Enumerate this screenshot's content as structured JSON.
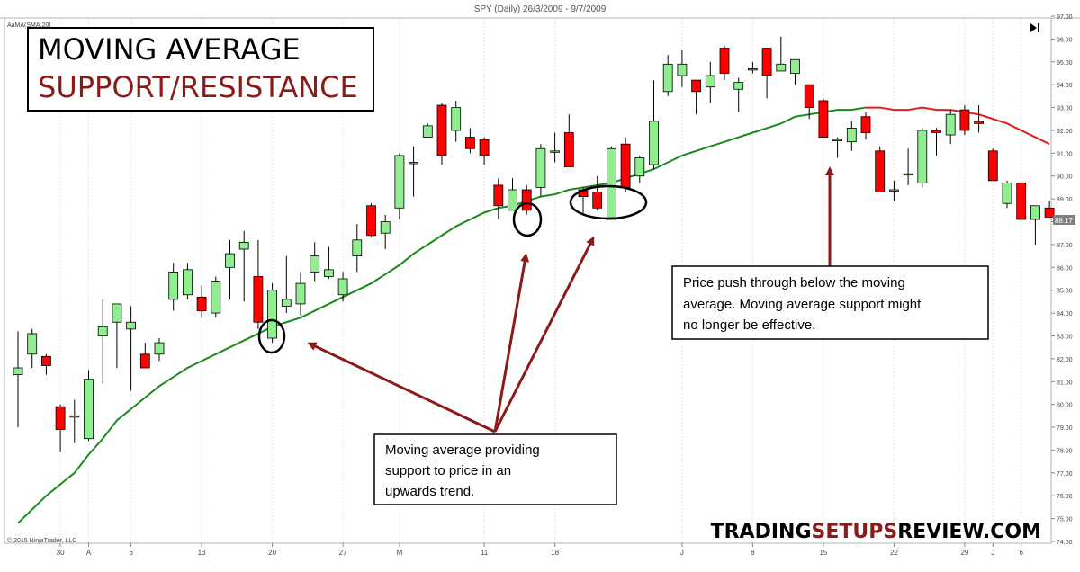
{
  "header": {
    "title": "SPY (Daily)  26/3/2009 - 9/7/2009"
  },
  "indicator_label": "AaMA(SMA,20)",
  "copyright": "© 2015 NinjaTrader, LLC",
  "brand": {
    "part1": "TRADING",
    "part2": "SETUPS",
    "part3": "REVIEW.COM"
  },
  "title_box": {
    "line1": "MOVING AVERAGE",
    "line2": "SUPPORT/RESISTANCE"
  },
  "notes": {
    "support": [
      "Moving average providing",
      "support to price in an",
      "upwards trend."
    ],
    "break": [
      "Price push through below the moving",
      "average. Moving average support might",
      "no longer be effective."
    ]
  },
  "price_tag": "88.17",
  "nav_icon": "skip-to-end-icon",
  "colors": {
    "up": "#90ee90",
    "down": "#ff0000",
    "ma_support": "#1a8a1a",
    "ma_resistance": "#e02020",
    "arrow": "#8b1a1a",
    "title_red": "#8b1a1a"
  },
  "chart_data": {
    "type": "candlestick",
    "ylim": [
      74,
      97
    ],
    "yticks": [
      74,
      75,
      76,
      77,
      78,
      79,
      80,
      81,
      82,
      83,
      84,
      85,
      86,
      87,
      88,
      89,
      90,
      91,
      92,
      93,
      94,
      95,
      96,
      97
    ],
    "xticks": [
      "30",
      "A",
      "6",
      "13",
      "20",
      "27",
      "M",
      "11",
      "18",
      "J",
      "8",
      "15",
      "22",
      "29",
      "J",
      "6"
    ],
    "xtick_index": [
      3,
      5,
      8,
      13,
      18,
      23,
      27,
      33,
      38,
      47,
      52,
      57,
      62,
      67,
      69,
      71
    ],
    "candles": [
      {
        "o": 81.3,
        "h": 83.2,
        "l": 79.0,
        "c": 81.6
      },
      {
        "o": 82.2,
        "h": 83.3,
        "l": 81.6,
        "c": 83.1
      },
      {
        "o": 82.1,
        "h": 82.2,
        "l": 81.3,
        "c": 81.7
      },
      {
        "o": 79.9,
        "h": 80.0,
        "l": 77.9,
        "c": 78.9
      },
      {
        "o": 79.5,
        "h": 80.2,
        "l": 78.3,
        "c": 79.5
      },
      {
        "o": 78.5,
        "h": 81.5,
        "l": 78.4,
        "c": 81.1
      },
      {
        "o": 83.0,
        "h": 84.6,
        "l": 80.9,
        "c": 83.4
      },
      {
        "o": 83.6,
        "h": 84.4,
        "l": 81.6,
        "c": 84.4
      },
      {
        "o": 83.3,
        "h": 84.3,
        "l": 80.6,
        "c": 83.6
      },
      {
        "o": 82.2,
        "h": 82.7,
        "l": 81.6,
        "c": 81.6
      },
      {
        "o": 82.2,
        "h": 82.9,
        "l": 81.9,
        "c": 82.7
      },
      {
        "o": 84.6,
        "h": 86.2,
        "l": 84.1,
        "c": 85.8
      },
      {
        "o": 84.8,
        "h": 86.2,
        "l": 84.6,
        "c": 85.9
      },
      {
        "o": 84.7,
        "h": 85.2,
        "l": 83.8,
        "c": 84.1
      },
      {
        "o": 84.0,
        "h": 85.6,
        "l": 83.8,
        "c": 85.4
      },
      {
        "o": 86.0,
        "h": 87.2,
        "l": 84.6,
        "c": 86.6
      },
      {
        "o": 86.8,
        "h": 87.6,
        "l": 84.5,
        "c": 87.1
      },
      {
        "o": 85.6,
        "h": 87.2,
        "l": 83.3,
        "c": 83.6
      },
      {
        "o": 82.9,
        "h": 85.3,
        "l": 82.7,
        "c": 85.0
      },
      {
        "o": 84.3,
        "h": 86.5,
        "l": 84.0,
        "c": 84.6
      },
      {
        "o": 84.4,
        "h": 85.8,
        "l": 83.9,
        "c": 85.3
      },
      {
        "o": 85.8,
        "h": 87.1,
        "l": 85.4,
        "c": 86.5
      },
      {
        "o": 85.6,
        "h": 86.9,
        "l": 85.5,
        "c": 85.9
      },
      {
        "o": 84.8,
        "h": 85.8,
        "l": 84.5,
        "c": 85.5
      },
      {
        "o": 86.5,
        "h": 87.9,
        "l": 85.8,
        "c": 87.2
      },
      {
        "o": 88.7,
        "h": 88.8,
        "l": 87.3,
        "c": 87.4
      },
      {
        "o": 87.5,
        "h": 88.3,
        "l": 86.8,
        "c": 88.0
      },
      {
        "o": 88.6,
        "h": 91.0,
        "l": 88.1,
        "c": 90.9
      },
      {
        "o": 90.6,
        "h": 91.3,
        "l": 89.1,
        "c": 90.6
      },
      {
        "o": 91.7,
        "h": 92.3,
        "l": 91.7,
        "c": 92.2
      },
      {
        "o": 93.1,
        "h": 93.2,
        "l": 90.5,
        "c": 90.9
      },
      {
        "o": 92.0,
        "h": 93.3,
        "l": 91.5,
        "c": 93.0
      },
      {
        "o": 91.7,
        "h": 92.1,
        "l": 91.0,
        "c": 91.2
      },
      {
        "o": 91.6,
        "h": 91.7,
        "l": 90.5,
        "c": 90.9
      },
      {
        "o": 89.6,
        "h": 89.9,
        "l": 88.1,
        "c": 88.7
      },
      {
        "o": 88.5,
        "h": 89.9,
        "l": 88.5,
        "c": 89.4
      },
      {
        "o": 89.4,
        "h": 89.6,
        "l": 88.3,
        "c": 88.5
      },
      {
        "o": 89.5,
        "h": 91.4,
        "l": 89.1,
        "c": 91.2
      },
      {
        "o": 91.1,
        "h": 91.9,
        "l": 90.6,
        "c": 91.1
      },
      {
        "o": 91.9,
        "h": 92.7,
        "l": 90.4,
        "c": 90.4
      },
      {
        "o": 89.4,
        "h": 89.5,
        "l": 88.3,
        "c": 89.1
      },
      {
        "o": 89.3,
        "h": 90.0,
        "l": 88.5,
        "c": 88.6
      },
      {
        "o": 88.1,
        "h": 91.3,
        "l": 88.1,
        "c": 91.2
      },
      {
        "o": 91.4,
        "h": 91.7,
        "l": 89.3,
        "c": 89.5
      },
      {
        "o": 90.0,
        "h": 90.9,
        "l": 89.7,
        "c": 90.8
      },
      {
        "o": 90.5,
        "h": 94.2,
        "l": 90.3,
        "c": 92.4
      },
      {
        "o": 93.7,
        "h": 95.3,
        "l": 93.5,
        "c": 94.9
      },
      {
        "o": 94.4,
        "h": 95.5,
        "l": 93.9,
        "c": 94.9
      },
      {
        "o": 94.2,
        "h": 94.2,
        "l": 92.7,
        "c": 93.7
      },
      {
        "o": 93.9,
        "h": 95.0,
        "l": 93.2,
        "c": 94.4
      },
      {
        "o": 95.6,
        "h": 95.7,
        "l": 94.2,
        "c": 94.5
      },
      {
        "o": 93.8,
        "h": 94.3,
        "l": 92.8,
        "c": 94.1
      },
      {
        "o": 94.7,
        "h": 95.0,
        "l": 94.5,
        "c": 94.7
      },
      {
        "o": 95.6,
        "h": 95.6,
        "l": 93.4,
        "c": 94.4
      },
      {
        "o": 94.6,
        "h": 96.1,
        "l": 94.6,
        "c": 94.9
      },
      {
        "o": 94.5,
        "h": 95.1,
        "l": 94.0,
        "c": 95.1
      },
      {
        "o": 94.0,
        "h": 94.0,
        "l": 92.5,
        "c": 93.0
      },
      {
        "o": 93.3,
        "h": 93.4,
        "l": 91.7,
        "c": 91.7
      },
      {
        "o": 91.6,
        "h": 91.7,
        "l": 90.8,
        "c": 91.6
      },
      {
        "o": 91.5,
        "h": 92.4,
        "l": 91.1,
        "c": 92.1
      },
      {
        "o": 92.6,
        "h": 92.8,
        "l": 91.6,
        "c": 91.9
      },
      {
        "o": 91.1,
        "h": 91.3,
        "l": 89.3,
        "c": 89.3
      },
      {
        "o": 89.4,
        "h": 89.8,
        "l": 88.9,
        "c": 89.4
      },
      {
        "o": 90.1,
        "h": 91.2,
        "l": 89.6,
        "c": 90.1
      },
      {
        "o": 89.7,
        "h": 92.1,
        "l": 89.5,
        "c": 92.0
      },
      {
        "o": 92.0,
        "h": 92.1,
        "l": 90.9,
        "c": 91.9
      },
      {
        "o": 91.8,
        "h": 92.9,
        "l": 91.4,
        "c": 92.7
      },
      {
        "o": 92.9,
        "h": 93.1,
        "l": 91.8,
        "c": 92.0
      },
      {
        "o": 92.4,
        "h": 93.1,
        "l": 91.9,
        "c": 92.3
      },
      {
        "o": 91.1,
        "h": 91.2,
        "l": 89.9,
        "c": 89.8
      },
      {
        "o": 88.8,
        "h": 89.8,
        "l": 88.6,
        "c": 89.7
      },
      {
        "o": 89.7,
        "h": 89.7,
        "l": 88.1,
        "c": 88.1
      },
      {
        "o": 88.1,
        "h": 88.7,
        "l": 87.0,
        "c": 88.7
      },
      {
        "o": 88.6,
        "h": 88.9,
        "l": 88.2,
        "c": 88.2
      }
    ],
    "sma20": [
      74.8,
      75.4,
      76.0,
      76.5,
      77.0,
      77.8,
      78.5,
      79.3,
      79.8,
      80.3,
      80.8,
      81.2,
      81.6,
      81.9,
      82.2,
      82.5,
      82.8,
      83.1,
      83.4,
      83.6,
      83.8,
      84.1,
      84.4,
      84.7,
      85.0,
      85.3,
      85.7,
      86.1,
      86.6,
      87.0,
      87.4,
      87.8,
      88.1,
      88.4,
      88.6,
      88.7,
      88.9,
      89.1,
      89.2,
      89.4,
      89.5,
      89.6,
      89.7,
      89.9,
      90.1,
      90.3,
      90.6,
      90.9,
      91.1,
      91.3,
      91.5,
      91.7,
      91.9,
      92.1,
      92.3,
      92.6,
      92.7,
      92.8,
      92.9,
      92.9,
      93.0,
      93.0,
      92.9,
      92.9,
      93.0,
      92.9,
      92.9,
      92.8,
      92.7,
      92.5,
      92.3,
      92.0,
      91.7,
      91.4
    ]
  }
}
